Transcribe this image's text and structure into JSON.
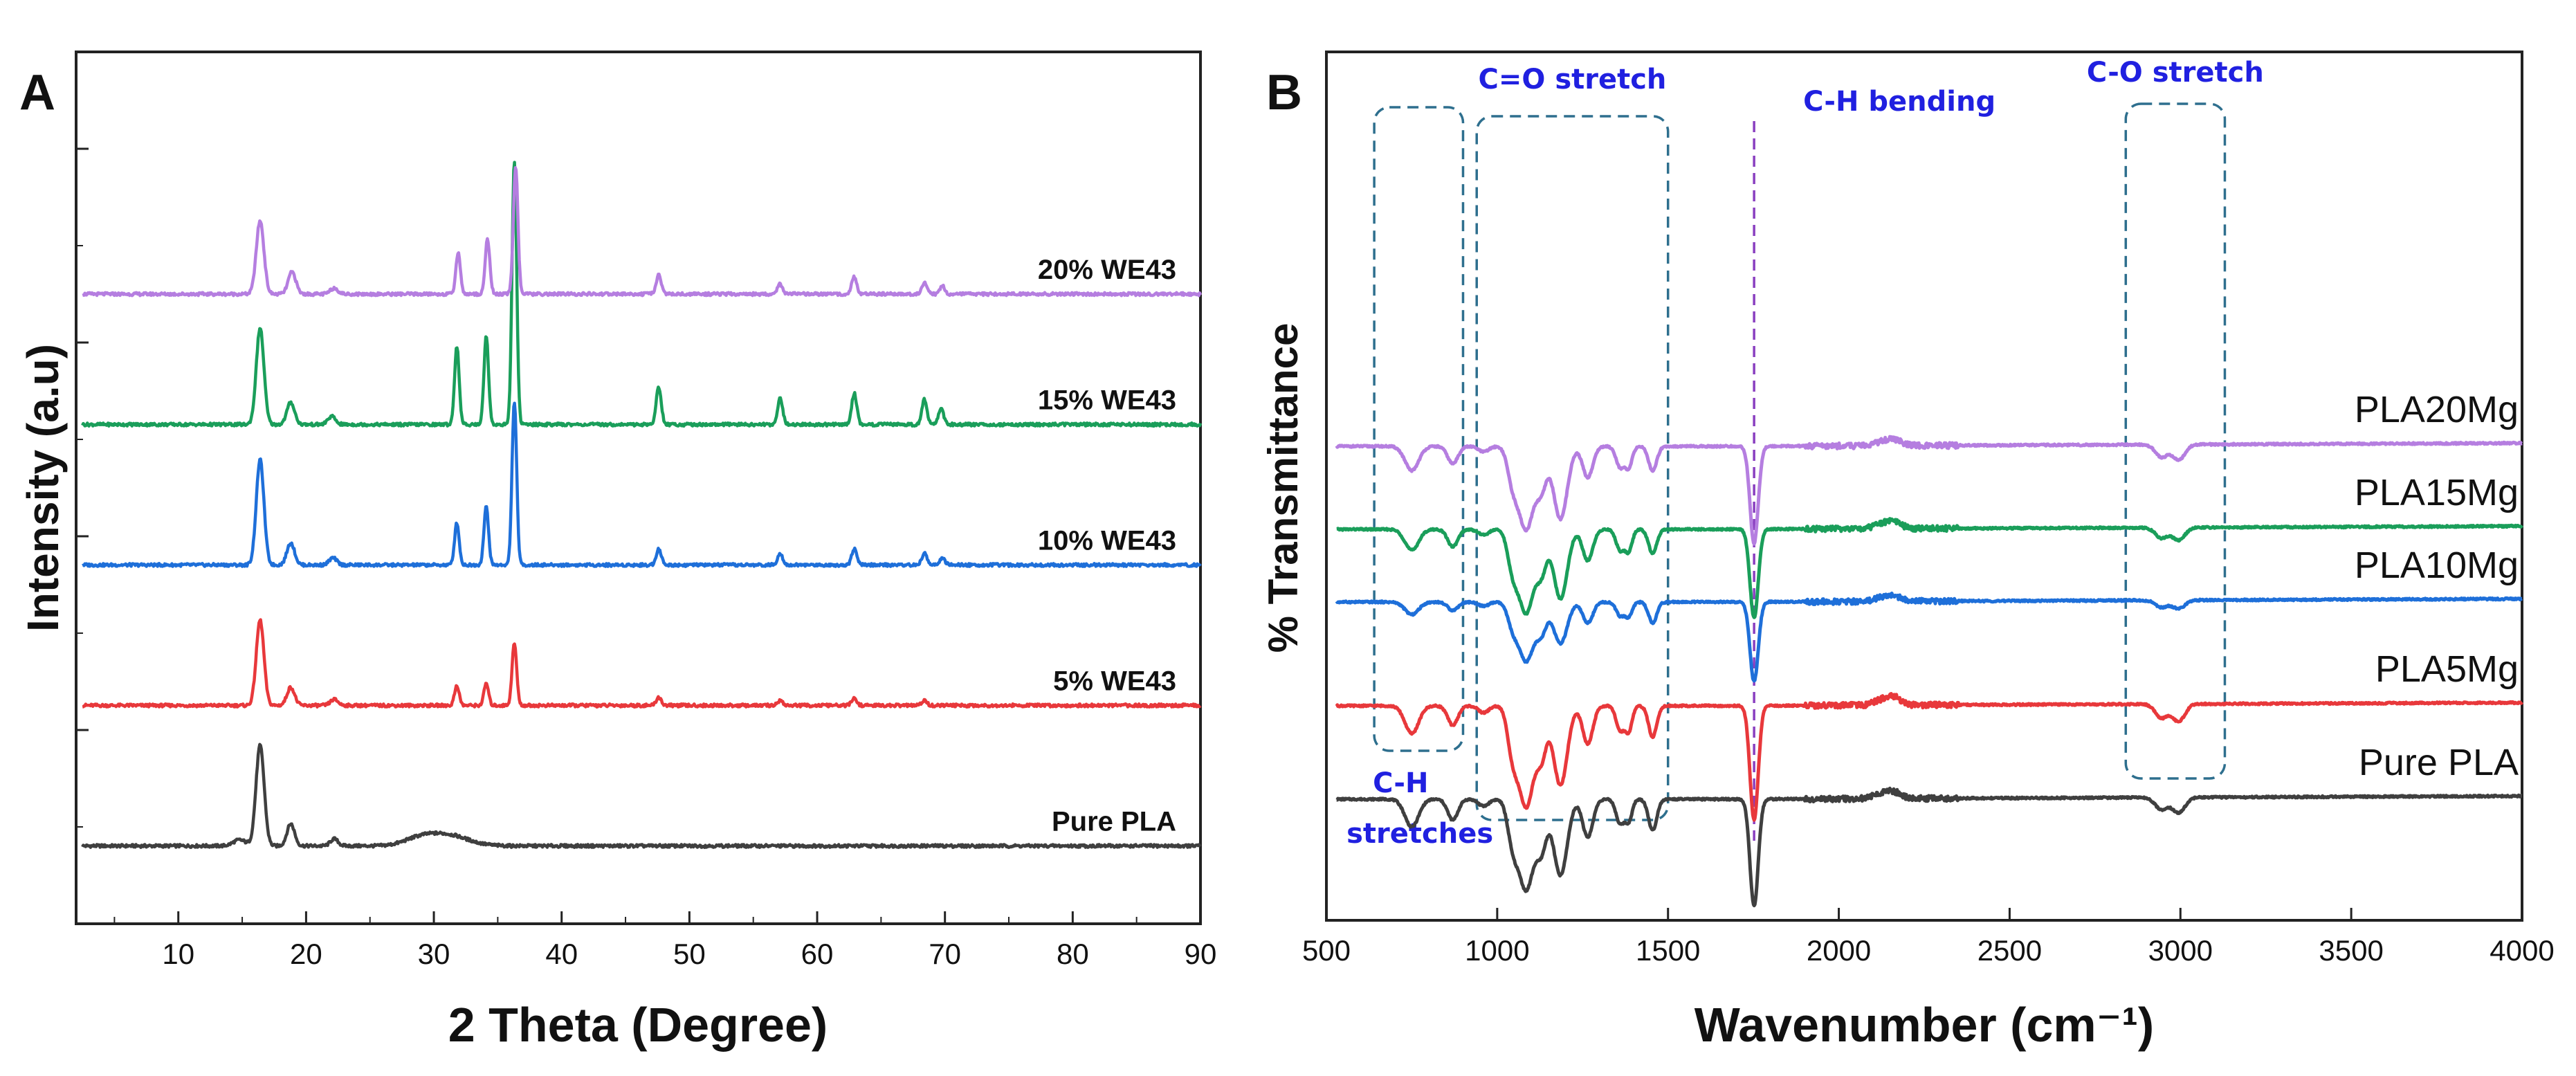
{
  "chart_data": [
    {
      "panel": "A",
      "type": "line",
      "xlabel": "2 Theta (Degree)",
      "ylabel": "Intensity (a.u)",
      "xlim": [
        2,
        90
      ],
      "xticks": [
        10,
        20,
        30,
        40,
        50,
        60,
        70,
        80,
        90
      ],
      "grid": false,
      "legend": "inline labels at right",
      "series": [
        {
          "name": "Pure PLA",
          "color": "#3f3f3f",
          "baseline": 0.5,
          "gain": 1.0,
          "peaks": [
            [
              14.8,
              0.06,
              0.5
            ],
            [
              16.4,
              1.0,
              0.32
            ],
            [
              18.8,
              0.22,
              0.3
            ],
            [
              22.2,
              0.07,
              0.3
            ],
            [
              28.8,
              0.06,
              1.2
            ],
            [
              31.0,
              0.11,
              1.6
            ]
          ]
        },
        {
          "name": "5% WE43",
          "color": "#e8383b",
          "baseline": 1.9,
          "gain": 1.0,
          "peaks": [
            [
              16.4,
              0.85,
              0.3
            ],
            [
              18.8,
              0.18,
              0.3
            ],
            [
              22.2,
              0.06,
              0.3
            ],
            [
              31.8,
              0.2,
              0.18
            ],
            [
              34.1,
              0.22,
              0.18
            ],
            [
              36.3,
              0.62,
              0.18
            ],
            [
              47.6,
              0.08,
              0.2
            ],
            [
              57.1,
              0.05,
              0.2
            ],
            [
              62.9,
              0.07,
              0.2
            ],
            [
              68.4,
              0.05,
              0.2
            ]
          ]
        },
        {
          "name": "10% WE43",
          "color": "#1e6fd9",
          "baseline": 3.3,
          "gain": 1.0,
          "peaks": [
            [
              16.4,
              1.05,
              0.3
            ],
            [
              18.8,
              0.22,
              0.3
            ],
            [
              22.1,
              0.07,
              0.3
            ],
            [
              31.8,
              0.42,
              0.18
            ],
            [
              34.1,
              0.58,
              0.18
            ],
            [
              36.3,
              1.63,
              0.18
            ],
            [
              47.6,
              0.16,
              0.2
            ],
            [
              57.1,
              0.12,
              0.2
            ],
            [
              62.9,
              0.16,
              0.2
            ],
            [
              68.4,
              0.12,
              0.2
            ],
            [
              69.8,
              0.07,
              0.2
            ]
          ]
        },
        {
          "name": "15% WE43",
          "color": "#1a9e5a",
          "baseline": 4.7,
          "gain": 1.0,
          "peaks": [
            [
              16.4,
              0.96,
              0.3
            ],
            [
              18.8,
              0.22,
              0.3
            ],
            [
              22.0,
              0.08,
              0.3
            ],
            [
              31.8,
              0.78,
              0.18
            ],
            [
              34.1,
              0.88,
              0.18
            ],
            [
              36.3,
              2.62,
              0.18
            ],
            [
              47.6,
              0.37,
              0.2
            ],
            [
              57.1,
              0.26,
              0.2
            ],
            [
              62.9,
              0.31,
              0.2
            ],
            [
              68.4,
              0.25,
              0.2
            ],
            [
              69.7,
              0.16,
              0.2
            ]
          ]
        },
        {
          "name": "20% WE43",
          "color": "#b57ee0",
          "baseline": 6.0,
          "gain": 1.0,
          "peaks": [
            [
              16.4,
              0.73,
              0.3
            ],
            [
              18.9,
              0.22,
              0.3
            ],
            [
              22.2,
              0.06,
              0.3
            ],
            [
              31.9,
              0.41,
              0.18
            ],
            [
              34.2,
              0.55,
              0.18
            ],
            [
              36.4,
              1.27,
              0.18
            ],
            [
              47.6,
              0.19,
              0.2
            ],
            [
              57.1,
              0.1,
              0.2
            ],
            [
              62.9,
              0.17,
              0.2
            ],
            [
              68.4,
              0.12,
              0.2
            ],
            [
              69.8,
              0.08,
              0.2
            ]
          ]
        }
      ]
    },
    {
      "panel": "B",
      "type": "line",
      "xlabel": "Wavenumber (cm⁻¹)",
      "ylabel": "% Transmittance",
      "xlim": [
        500,
        4000
      ],
      "xticks": [
        500,
        1000,
        1500,
        2000,
        2500,
        3000,
        3500,
        4000
      ],
      "grid": false,
      "legend": "inline labels at right",
      "series": [
        {
          "name": "Pure PLA",
          "color": "#3f3f3f",
          "baseline": 1.5,
          "gain": 1.0,
          "bands": [
            [
              750,
              0.4,
              20
            ],
            [
              870,
              0.3,
              15
            ],
            [
              960,
              0.1,
              15
            ],
            [
              1045,
              0.55,
              15
            ],
            [
              1085,
              1.3,
              22
            ],
            [
              1130,
              0.65,
              15
            ],
            [
              1185,
              1.1,
              20
            ],
            [
              1265,
              0.55,
              15
            ],
            [
              1360,
              0.35,
              12
            ],
            [
              1385,
              0.3,
              10
            ],
            [
              1455,
              0.45,
              12
            ],
            [
              1752,
              1.55,
              12
            ],
            [
              2130,
              -0.08,
              25
            ],
            [
              2165,
              -0.07,
              20
            ],
            [
              2945,
              0.18,
              18
            ],
            [
              2995,
              0.22,
              18
            ]
          ]
        },
        {
          "name": "PLA5Mg",
          "color": "#e8383b",
          "baseline": 2.85,
          "gain": 1.0,
          "bands": [
            [
              750,
              0.4,
              20
            ],
            [
              870,
              0.28,
              15
            ],
            [
              960,
              0.1,
              15
            ],
            [
              1045,
              0.6,
              15
            ],
            [
              1085,
              1.45,
              22
            ],
            [
              1130,
              0.65,
              15
            ],
            [
              1185,
              1.15,
              20
            ],
            [
              1265,
              0.55,
              15
            ],
            [
              1360,
              0.35,
              12
            ],
            [
              1385,
              0.35,
              10
            ],
            [
              1455,
              0.45,
              12
            ],
            [
              1752,
              1.65,
              12
            ],
            [
              2130,
              -0.08,
              25
            ],
            [
              2165,
              -0.09,
              20
            ],
            [
              2945,
              0.2,
              18
            ],
            [
              2995,
              0.25,
              18
            ]
          ]
        },
        {
          "name": "PLA10Mg",
          "color": "#1e6fd9",
          "baseline": 4.35,
          "gain": 1.0,
          "bands": [
            [
              750,
              0.18,
              20
            ],
            [
              870,
              0.12,
              15
            ],
            [
              960,
              0.06,
              15
            ],
            [
              1045,
              0.3,
              15
            ],
            [
              1085,
              0.85,
              22
            ],
            [
              1130,
              0.4,
              15
            ],
            [
              1185,
              0.6,
              20
            ],
            [
              1265,
              0.3,
              15
            ],
            [
              1360,
              0.2,
              12
            ],
            [
              1385,
              0.2,
              10
            ],
            [
              1455,
              0.3,
              12
            ],
            [
              1752,
              1.15,
              12
            ],
            [
              2130,
              -0.06,
              25
            ],
            [
              2165,
              -0.06,
              20
            ],
            [
              2945,
              0.1,
              18
            ],
            [
              2995,
              0.12,
              18
            ]
          ]
        },
        {
          "name": "PLA15Mg",
          "color": "#1a9e5a",
          "baseline": 5.4,
          "gain": 1.0,
          "bands": [
            [
              750,
              0.3,
              20
            ],
            [
              870,
              0.25,
              15
            ],
            [
              960,
              0.08,
              15
            ],
            [
              1045,
              0.5,
              15
            ],
            [
              1085,
              1.2,
              22
            ],
            [
              1130,
              0.55,
              15
            ],
            [
              1185,
              1.0,
              20
            ],
            [
              1265,
              0.45,
              15
            ],
            [
              1360,
              0.3,
              12
            ],
            [
              1385,
              0.3,
              10
            ],
            [
              1455,
              0.35,
              12
            ],
            [
              1752,
              1.28,
              12
            ],
            [
              2130,
              -0.07,
              25
            ],
            [
              2165,
              -0.08,
              20
            ],
            [
              2945,
              0.15,
              18
            ],
            [
              2995,
              0.18,
              18
            ]
          ]
        },
        {
          "name": "PLA20Mg",
          "color": "#b57ee0",
          "baseline": 6.6,
          "gain": 1.0,
          "bands": [
            [
              750,
              0.35,
              20
            ],
            [
              870,
              0.25,
              15
            ],
            [
              960,
              0.08,
              15
            ],
            [
              1045,
              0.45,
              15
            ],
            [
              1085,
              1.2,
              22
            ],
            [
              1130,
              0.55,
              15
            ],
            [
              1185,
              1.05,
              20
            ],
            [
              1265,
              0.45,
              15
            ],
            [
              1360,
              0.3,
              12
            ],
            [
              1385,
              0.3,
              10
            ],
            [
              1455,
              0.35,
              12
            ],
            [
              1752,
              1.4,
              12
            ],
            [
              2130,
              -0.06,
              25
            ],
            [
              2165,
              -0.07,
              20
            ],
            [
              2945,
              0.18,
              18
            ],
            [
              2995,
              0.22,
              18
            ]
          ]
        }
      ],
      "annotations": {
        "boxes": [
          {
            "label": "C-H stretches",
            "x_range": [
              640,
              900
            ]
          },
          {
            "label": "C=O stretch",
            "x_range": [
              940,
              1500
            ]
          },
          {
            "label": "C-O stretch",
            "x_range": [
              2840,
              3130
            ]
          }
        ],
        "marker_line": {
          "label": "C-H bending",
          "x": 1752
        }
      }
    }
  ],
  "panels": {
    "a_label": "A",
    "b_label": "B"
  }
}
